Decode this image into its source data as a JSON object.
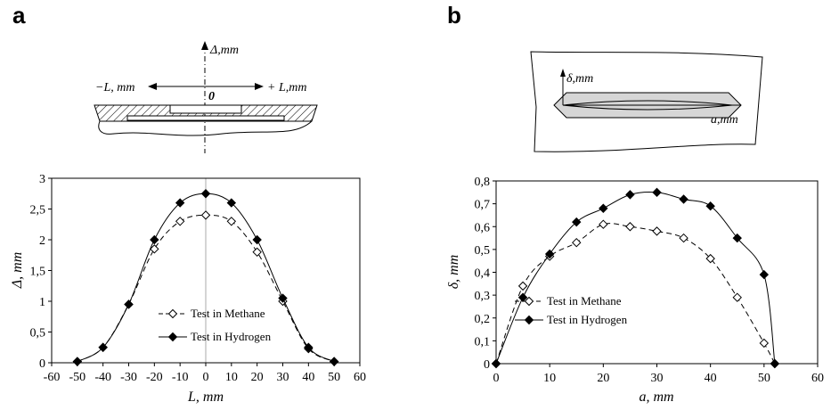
{
  "panels": {
    "a": {
      "letter": "a"
    },
    "b": {
      "letter": "b"
    }
  },
  "sketch_a": {
    "delta_axis": "Δ,mm",
    "neg_axis": "−L, mm",
    "pos_axis": "+ L,mm",
    "origin": "0"
  },
  "sketch_b": {
    "delta_axis": "δ,mm",
    "a_axis": "a,mm"
  },
  "chart_data": [
    {
      "type": "line",
      "xlabel": "L, mm",
      "ylabel": "Δ, mm",
      "xlim": [
        -60,
        60
      ],
      "ylim": [
        0,
        3
      ],
      "x_ticks": [
        "-60",
        "-50",
        "-40",
        "-30",
        "-20",
        "-10",
        "0",
        "10",
        "20",
        "30",
        "40",
        "50",
        "60"
      ],
      "y_ticks": [
        "0",
        "0,5",
        "1",
        "1,5",
        "2",
        "2,5",
        "3"
      ],
      "legend_position": "bottom-center",
      "series": [
        {
          "name": "Test in Methane",
          "style": "dashed",
          "marker": "open-diamond",
          "color": "#000000",
          "x": [
            -50,
            -40,
            -30,
            -20,
            -10,
            0,
            10,
            20,
            30,
            40,
            50
          ],
          "y": [
            0.02,
            0.25,
            0.95,
            1.85,
            2.3,
            2.4,
            2.3,
            1.8,
            1.0,
            0.23,
            0.02
          ]
        },
        {
          "name": "Test in Hydrogen",
          "style": "solid",
          "marker": "filled-diamond",
          "color": "#000000",
          "x": [
            -50,
            -40,
            -30,
            -20,
            -10,
            0,
            10,
            20,
            30,
            40,
            50
          ],
          "y": [
            0.02,
            0.25,
            0.95,
            2.0,
            2.6,
            2.75,
            2.6,
            2.0,
            1.05,
            0.25,
            0.02
          ]
        }
      ]
    },
    {
      "type": "line",
      "xlabel": "a, mm",
      "ylabel": "δ, mm",
      "xlim": [
        0,
        60
      ],
      "ylim": [
        0,
        0.8
      ],
      "x_ticks": [
        "0",
        "10",
        "20",
        "30",
        "40",
        "50",
        "60"
      ],
      "y_ticks": [
        "0",
        "0,1",
        "0,2",
        "0,3",
        "0,4",
        "0,5",
        "0,6",
        "0,7",
        "0,8"
      ],
      "legend_position": "bottom-center",
      "series": [
        {
          "name": "Test in Methane",
          "style": "dashed",
          "marker": "open-diamond",
          "color": "#000000",
          "x": [
            0,
            5,
            10,
            15,
            20,
            25,
            30,
            35,
            40,
            45,
            50,
            52
          ],
          "y": [
            0.0,
            0.34,
            0.47,
            0.53,
            0.61,
            0.6,
            0.58,
            0.55,
            0.46,
            0.29,
            0.09,
            0.0
          ]
        },
        {
          "name": "Test in Hydrogen",
          "style": "solid",
          "marker": "filled-diamond",
          "color": "#000000",
          "x": [
            0,
            5,
            10,
            15,
            20,
            25,
            30,
            35,
            40,
            45,
            50,
            52
          ],
          "y": [
            0.0,
            0.29,
            0.48,
            0.62,
            0.68,
            0.74,
            0.75,
            0.72,
            0.69,
            0.55,
            0.39,
            0.0
          ]
        }
      ]
    }
  ]
}
